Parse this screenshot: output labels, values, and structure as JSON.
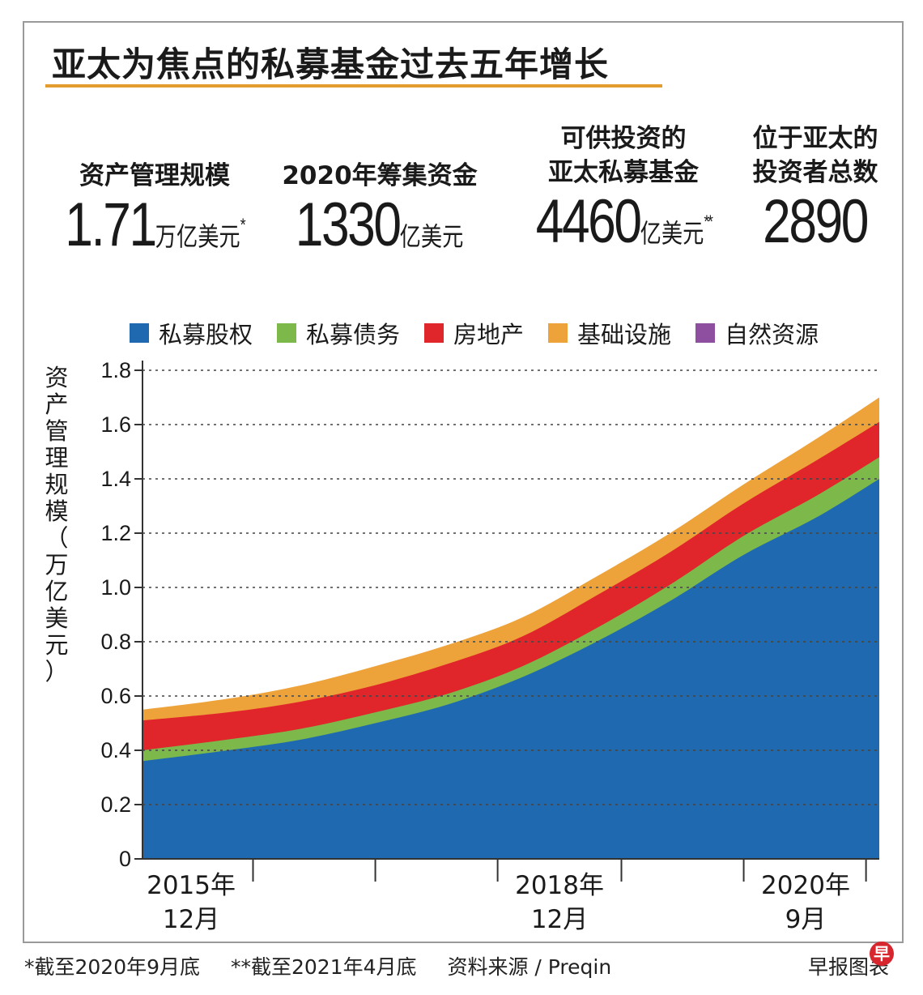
{
  "title": "亚太为焦点的私募基金过去五年增长",
  "stats": [
    {
      "label": "资产管理规模",
      "value": "1.71",
      "unit": "万亿美元",
      "mark": "*"
    },
    {
      "label": "2020年筹集资金",
      "value": "1330",
      "unit": "亿美元",
      "mark": ""
    },
    {
      "label_line1": "可供投资的",
      "label_line2": "亚太私募基金",
      "value": "4460",
      "unit": "亿美元",
      "mark": "**"
    },
    {
      "label_line1": "位于亚太的",
      "label_line2": "投资者总数",
      "value": "2890",
      "unit": "",
      "mark": ""
    }
  ],
  "ylabel_chars": [
    "资",
    "产",
    "管",
    "理",
    "规",
    "模",
    "（",
    "万",
    "亿",
    "美",
    "元",
    "）"
  ],
  "footer": {
    "note1": "*截至2020年9月底",
    "note2": "**截至2021年4月底",
    "source": "资料来源 / Preqin",
    "credit": "早报图表",
    "logo_char": "早"
  },
  "chart_data": {
    "type": "area",
    "stacked": true,
    "title": "亚太为焦点的私募基金过去五年增长",
    "ylabel": "资产管理规模（万亿美元）",
    "ylim": [
      0,
      1.8
    ],
    "yticks": [
      0,
      0.2,
      0.4,
      0.6,
      0.8,
      1.0,
      1.2,
      1.4,
      1.6,
      1.8
    ],
    "ytick_labels": [
      "0",
      "0.2",
      "0.4",
      "0.6",
      "0.8",
      "1.0",
      "1.2",
      "1.4",
      "1.6",
      "1.8"
    ],
    "x": [
      2015.92,
      2016.5,
      2017.0,
      2017.5,
      2018.0,
      2018.5,
      2019.0,
      2019.5,
      2020.0,
      2020.5,
      2020.92
    ],
    "xlim": [
      2015.92,
      2020.92
    ],
    "xtick_positions": [
      2016.67,
      2017.5,
      2018.33,
      2019.17,
      2020.0,
      2020.83
    ],
    "xlabels": [
      {
        "x": 2016.25,
        "line1": "2015年",
        "line2": "12月"
      },
      {
        "x": 2018.75,
        "line1": "2018年",
        "line2": "12月"
      },
      {
        "x": 2020.42,
        "line1": "2020年",
        "line2": "9月"
      }
    ],
    "series": [
      {
        "name": "私募股权",
        "color": "#1f69b0",
        "values": [
          0.36,
          0.4,
          0.44,
          0.5,
          0.57,
          0.67,
          0.8,
          0.95,
          1.12,
          1.26,
          1.4
        ]
      },
      {
        "name": "私募债务",
        "color": "#7db84a",
        "values": [
          0.04,
          0.04,
          0.04,
          0.04,
          0.04,
          0.04,
          0.05,
          0.06,
          0.07,
          0.08,
          0.08
        ]
      },
      {
        "name": "房地产",
        "color": "#e0252b",
        "values": [
          0.11,
          0.1,
          0.1,
          0.1,
          0.11,
          0.11,
          0.12,
          0.12,
          0.12,
          0.13,
          0.13
        ]
      },
      {
        "name": "基础设施",
        "color": "#eda23a",
        "values": [
          0.04,
          0.05,
          0.06,
          0.07,
          0.07,
          0.07,
          0.07,
          0.07,
          0.07,
          0.08,
          0.09
        ]
      },
      {
        "name": "自然资源",
        "color": "#8e4fa0",
        "values": [
          0,
          0,
          0,
          0,
          0,
          0,
          0,
          0,
          0,
          0,
          0
        ]
      }
    ],
    "grid": true
  }
}
